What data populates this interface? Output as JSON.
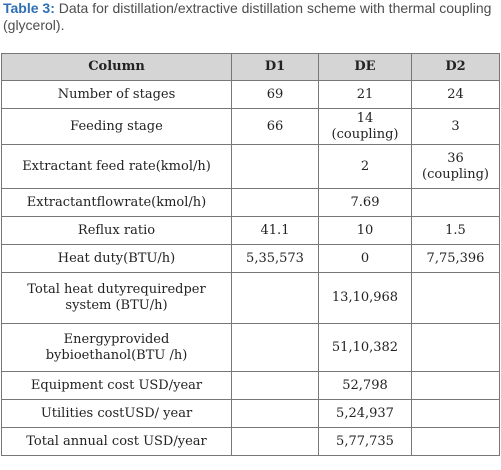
{
  "caption": {
    "label": "Table 3:",
    "text": " Data for distillation/extractive distillation scheme with thermal coupling (glycerol)."
  },
  "table": {
    "headers": [
      "Column",
      "D1",
      "DE",
      "D2"
    ],
    "rows": [
      {
        "label": "Number of stages",
        "d1": "69",
        "de": "21",
        "d2": "24"
      },
      {
        "label": "Feeding stage",
        "d1": "66",
        "de": "14\n(coupling)",
        "d2": "3"
      },
      {
        "label": "Extractant feed rate(kmol/h)",
        "d1": "",
        "de": "2",
        "d2": "36\n(coupling)"
      },
      {
        "label": "Extractantflowrate(kmol/h)",
        "d1": "",
        "de": "7.69",
        "d2": ""
      },
      {
        "label": "Reflux ratio",
        "d1": "41.1",
        "de": "10",
        "d2": "1.5"
      },
      {
        "label": "Heat duty(BTU/h)",
        "d1": "5,35,573",
        "de": "0",
        "d2": "7,75,396"
      },
      {
        "label": "Total heat dutyrequiredper\nsystem (BTU/h)",
        "d1": "",
        "de": "13,10,968",
        "d2": ""
      },
      {
        "label": "Energyprovided\nbybioethanol(BTU /h)",
        "d1": "",
        "de": "51,10,382",
        "d2": ""
      },
      {
        "label": "Equipment cost USD/year",
        "d1": "",
        "de": "52,798",
        "d2": ""
      },
      {
        "label": "Utilities costUSD/ year",
        "d1": "",
        "de": "5,24,937",
        "d2": ""
      },
      {
        "label": "Total annual cost USD/year",
        "d1": "",
        "de": "5,77,735",
        "d2": ""
      }
    ]
  }
}
